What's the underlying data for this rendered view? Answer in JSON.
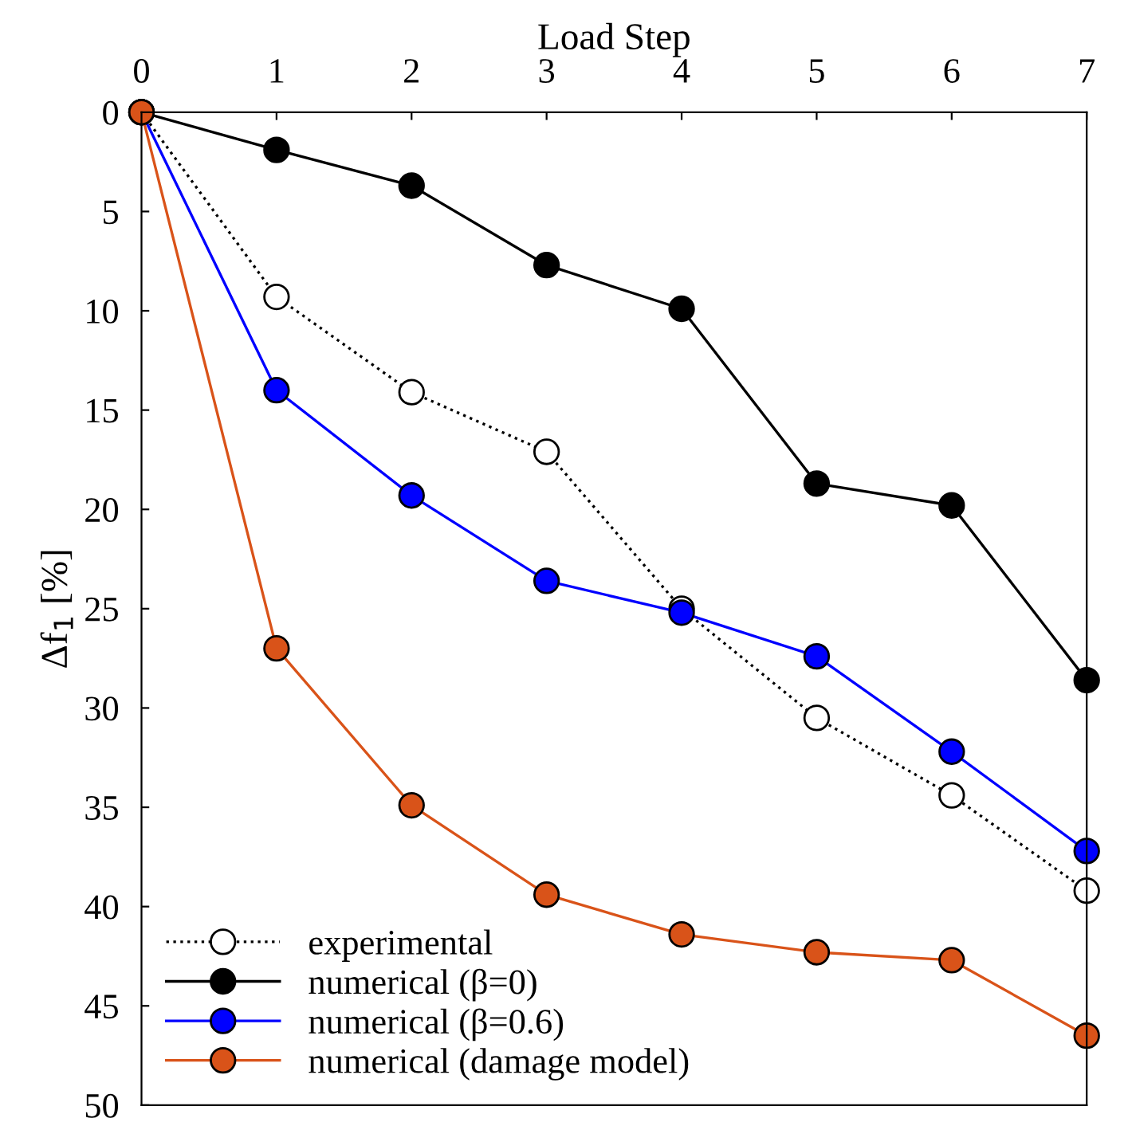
{
  "chart_data": {
    "type": "line",
    "xlabel": "Load Step",
    "ylabel": "Δf$_{1}$ [%]",
    "x": [
      0,
      1,
      2,
      3,
      4,
      5,
      6,
      7
    ],
    "xlim": [
      0,
      7
    ],
    "xticks": [
      0,
      1,
      2,
      3,
      4,
      5,
      6,
      7
    ],
    "ylim": [
      50,
      0
    ],
    "yticks": [
      0,
      5,
      10,
      15,
      20,
      25,
      30,
      35,
      40,
      45,
      50
    ],
    "grid": false,
    "legend": "bottom left",
    "marker": "circle",
    "series": [
      {
        "name": "experimental",
        "color": "#000000",
        "line_style": "dotted",
        "values": [
          0,
          9.3,
          14.1,
          17.1,
          25.0,
          30.5,
          34.4,
          39.2
        ]
      },
      {
        "name": "numerical (β=0)",
        "color": "#000000",
        "line_style": "solid",
        "values": [
          0,
          1.9,
          3.7,
          7.7,
          9.9,
          18.7,
          19.8,
          28.6
        ]
      },
      {
        "name": "numerical (β=0.6)",
        "color": "#0000ff",
        "line_style": "solid",
        "values": [
          0,
          14.0,
          19.3,
          23.6,
          25.2,
          27.4,
          32.2,
          37.2
        ]
      },
      {
        "name": "numerical (damage model)",
        "color": "#d95319",
        "line_style": "solid",
        "values": [
          0,
          27.0,
          34.9,
          39.4,
          41.4,
          42.3,
          42.7,
          46.5
        ]
      }
    ]
  }
}
